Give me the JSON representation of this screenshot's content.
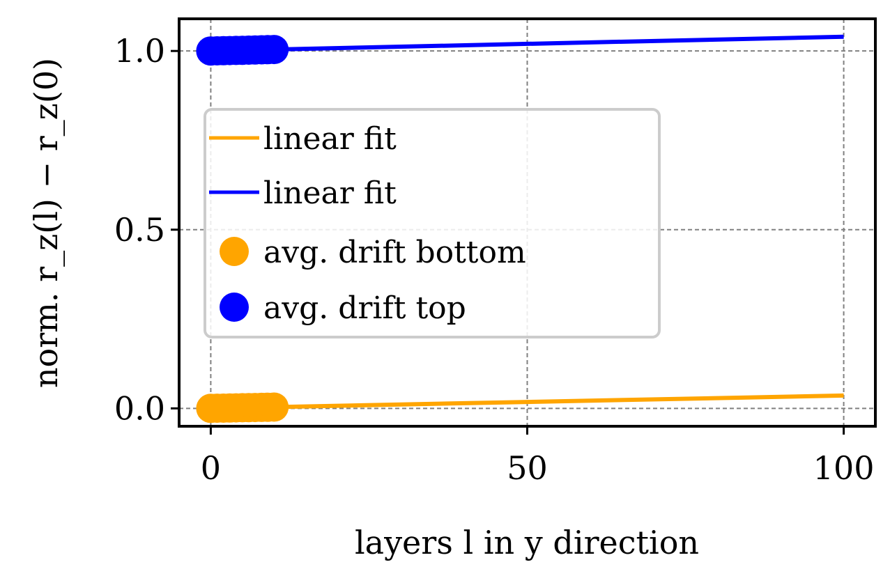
{
  "chart_data": {
    "type": "line",
    "xlabel": "layers l in y direction",
    "ylabel": "norm. r_z(l) − r_z(0)",
    "xlim": [
      -5,
      105
    ],
    "ylim": [
      -0.05,
      1.09
    ],
    "x_ticks": [
      0,
      50,
      100
    ],
    "x_tick_labels": [
      "0",
      "50",
      "100"
    ],
    "y_ticks": [
      0.0,
      0.5,
      1.0
    ],
    "y_tick_labels": [
      "0.0",
      "0.5",
      "1.0"
    ],
    "grid": true,
    "legend_position": "center-left",
    "series": [
      {
        "name": "linear fit",
        "kind": "line",
        "color": "#FFA500",
        "x": [
          0,
          100
        ],
        "y": [
          0.0,
          0.036
        ]
      },
      {
        "name": "linear fit",
        "kind": "line",
        "color": "#0000FF",
        "x": [
          0,
          100
        ],
        "y": [
          1.0,
          1.04
        ]
      },
      {
        "name": "avg. drift bottom",
        "kind": "scatter",
        "color": "#FFA500",
        "x": [
          0,
          1,
          2,
          3,
          4,
          5,
          6,
          7,
          8,
          9,
          10
        ],
        "y": [
          0.0,
          0.0004,
          0.0007,
          0.0011,
          0.0014,
          0.0018,
          0.0022,
          0.0025,
          0.0029,
          0.0032,
          0.0036
        ]
      },
      {
        "name": "avg. drift top",
        "kind": "scatter",
        "color": "#0000FF",
        "x": [
          0,
          1,
          2,
          3,
          4,
          5,
          6,
          7,
          8,
          9,
          10
        ],
        "y": [
          1.0,
          1.0004,
          1.0008,
          1.0012,
          1.0016,
          1.002,
          1.0024,
          1.0028,
          1.0032,
          1.0036,
          1.004
        ]
      }
    ]
  }
}
